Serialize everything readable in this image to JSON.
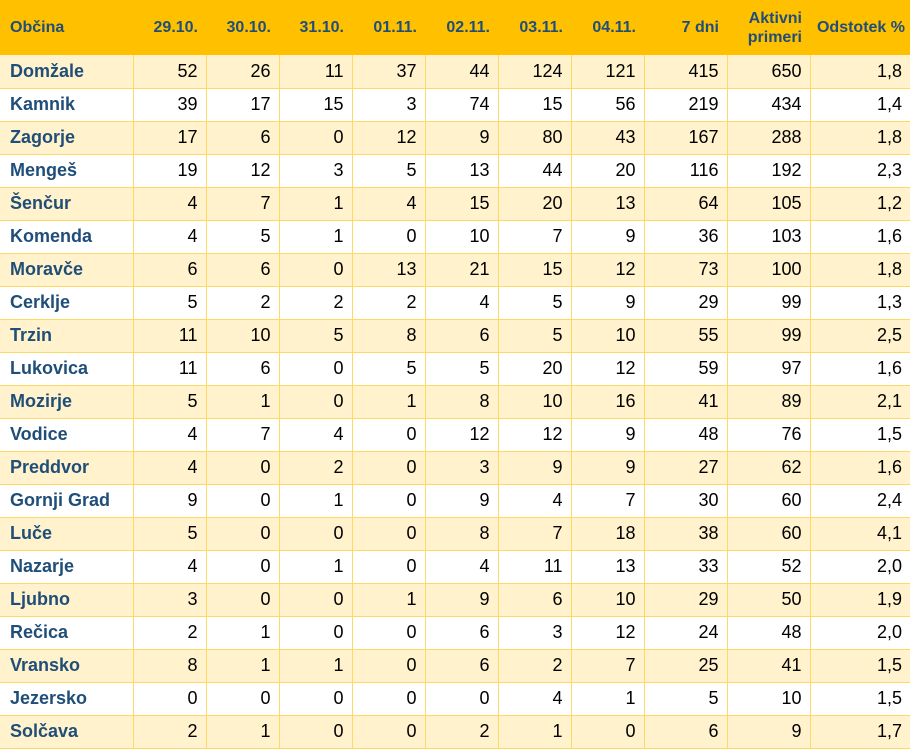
{
  "header": {
    "columns": [
      "Občina",
      "29.10.",
      "30.10.",
      "31.10.",
      "01.11.",
      "02.11.",
      "03.11.",
      "04.11.",
      "7 dni",
      "Aktivni primeri",
      "Odstotek %"
    ]
  },
  "rows": [
    [
      "Domžale",
      "52",
      "26",
      "11",
      "37",
      "44",
      "124",
      "121",
      "415",
      "650",
      "1,8"
    ],
    [
      "Kamnik",
      "39",
      "17",
      "15",
      "3",
      "74",
      "15",
      "56",
      "219",
      "434",
      "1,4"
    ],
    [
      "Zagorje",
      "17",
      "6",
      "0",
      "12",
      "9",
      "80",
      "43",
      "167",
      "288",
      "1,8"
    ],
    [
      "Mengeš",
      "19",
      "12",
      "3",
      "5",
      "13",
      "44",
      "20",
      "116",
      "192",
      "2,3"
    ],
    [
      "Šenčur",
      "4",
      "7",
      "1",
      "4",
      "15",
      "20",
      "13",
      "64",
      "105",
      "1,2"
    ],
    [
      "Komenda",
      "4",
      "5",
      "1",
      "0",
      "10",
      "7",
      "9",
      "36",
      "103",
      "1,6"
    ],
    [
      "Moravče",
      "6",
      "6",
      "0",
      "13",
      "21",
      "15",
      "12",
      "73",
      "100",
      "1,8"
    ],
    [
      "Cerklje",
      "5",
      "2",
      "2",
      "2",
      "4",
      "5",
      "9",
      "29",
      "99",
      "1,3"
    ],
    [
      "Trzin",
      "11",
      "10",
      "5",
      "8",
      "6",
      "5",
      "10",
      "55",
      "99",
      "2,5"
    ],
    [
      "Lukovica",
      "11",
      "6",
      "0",
      "5",
      "5",
      "20",
      "12",
      "59",
      "97",
      "1,6"
    ],
    [
      "Mozirje",
      "5",
      "1",
      "0",
      "1",
      "8",
      "10",
      "16",
      "41",
      "89",
      "2,1"
    ],
    [
      "Vodice",
      "4",
      "7",
      "4",
      "0",
      "12",
      "12",
      "9",
      "48",
      "76",
      "1,5"
    ],
    [
      "Preddvor",
      "4",
      "0",
      "2",
      "0",
      "3",
      "9",
      "9",
      "27",
      "62",
      "1,6"
    ],
    [
      "Gornji Grad",
      "9",
      "0",
      "1",
      "0",
      "9",
      "4",
      "7",
      "30",
      "60",
      "2,4"
    ],
    [
      "Luče",
      "5",
      "0",
      "0",
      "0",
      "8",
      "7",
      "18",
      "38",
      "60",
      "4,1"
    ],
    [
      "Nazarje",
      "4",
      "0",
      "1",
      "0",
      "4",
      "11",
      "13",
      "33",
      "52",
      "2,0"
    ],
    [
      "Ljubno",
      "3",
      "0",
      "0",
      "1",
      "9",
      "6",
      "10",
      "29",
      "50",
      "1,9"
    ],
    [
      "Rečica",
      "2",
      "1",
      "0",
      "0",
      "6",
      "3",
      "12",
      "24",
      "48",
      "2,0"
    ],
    [
      "Vransko",
      "8",
      "1",
      "1",
      "0",
      "6",
      "2",
      "7",
      "25",
      "41",
      "1,5"
    ],
    [
      "Jezersko",
      "0",
      "0",
      "0",
      "0",
      "0",
      "4",
      "1",
      "5",
      "10",
      "1,5"
    ],
    [
      "Solčava",
      "2",
      "1",
      "0",
      "0",
      "2",
      "1",
      "0",
      "6",
      "9",
      "1,7"
    ]
  ],
  "colors": {
    "header_bg": "#ffc000",
    "header_text": "#1f4e79",
    "row_alt_bg": "#fff2cc",
    "row_bg": "#ffffff",
    "grid": "#ffd966"
  }
}
